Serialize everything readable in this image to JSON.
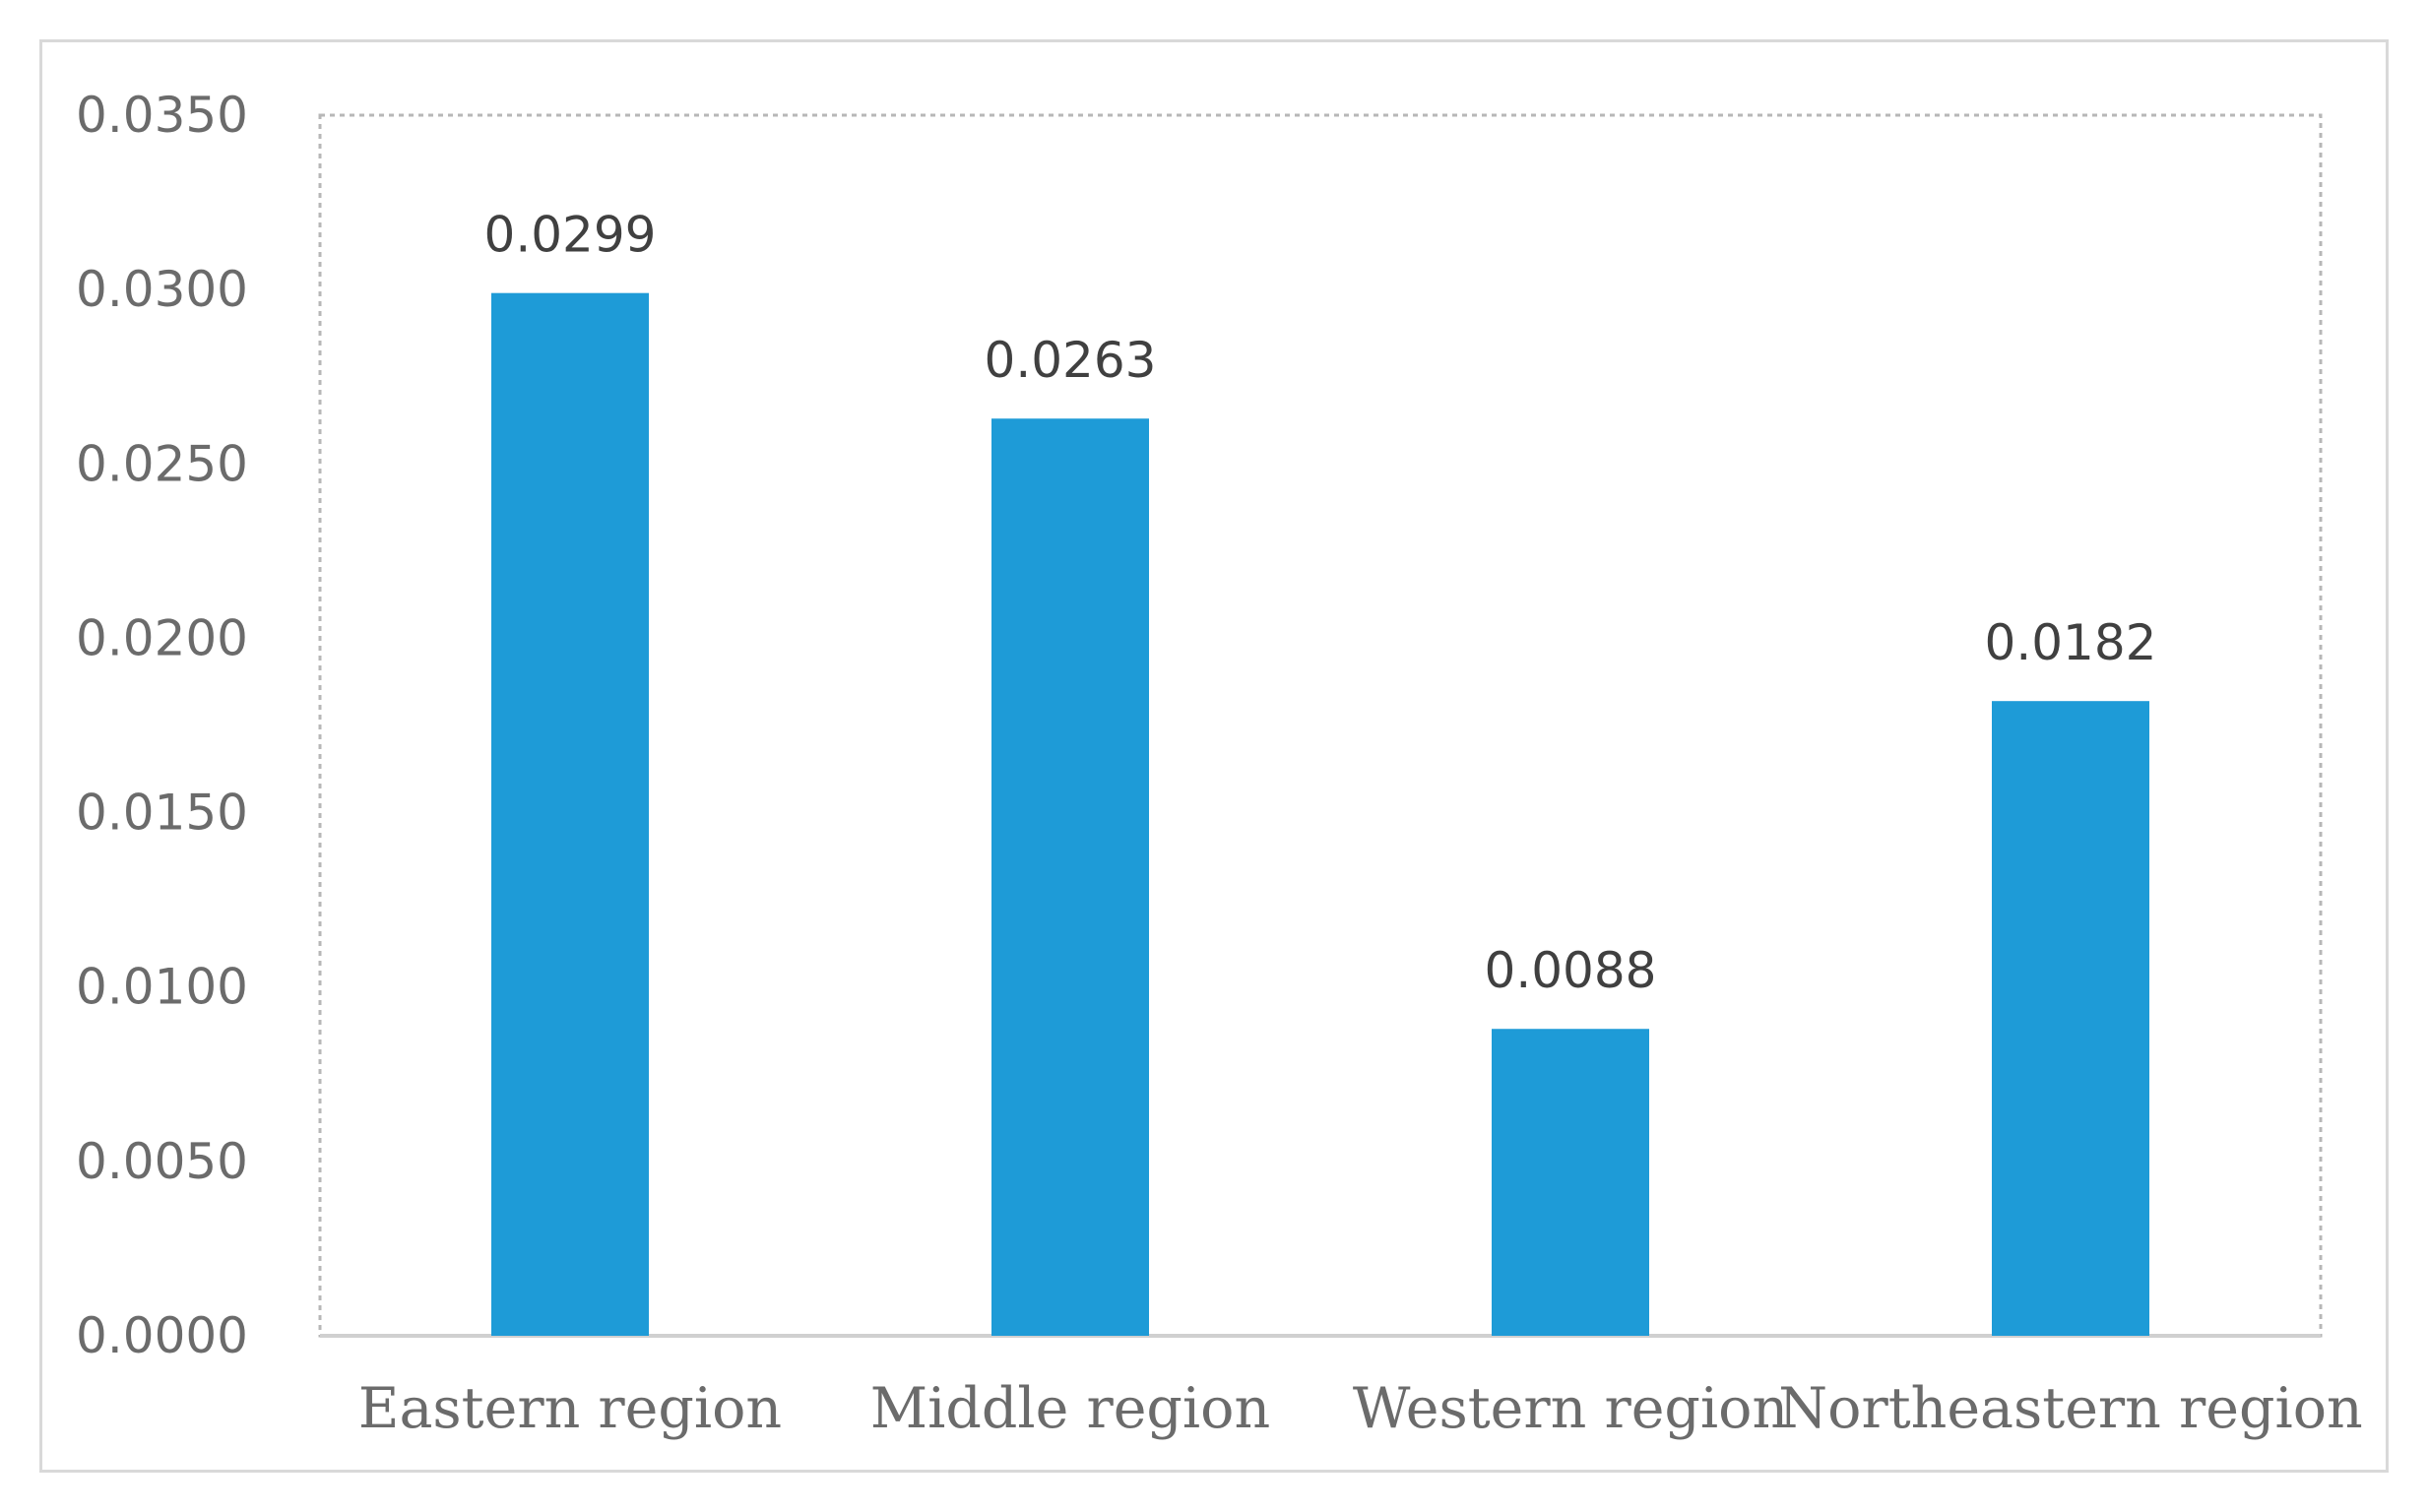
{
  "chart_data": {
    "type": "bar",
    "title": "",
    "xlabel": "",
    "ylabel": "",
    "categories": [
      "Eastern region",
      "Middle region",
      "Western region",
      "Northeastern region"
    ],
    "values": [
      0.0299,
      0.0263,
      0.0088,
      0.0182
    ],
    "data_labels": [
      "0.0299",
      "0.0263",
      "0.0088",
      "0.0182"
    ],
    "ylim": [
      0,
      0.035
    ],
    "yticks": [
      0,
      0.005,
      0.01,
      0.015,
      0.02,
      0.025,
      0.03,
      0.035
    ],
    "ytick_labels": [
      "0.0000",
      "0.0050",
      "0.0100",
      "0.0150",
      "0.0200",
      "0.0250",
      "0.0300",
      "0.0350"
    ],
    "grid": false,
    "legend": "none",
    "bar_color": "#1e9bd7"
  }
}
